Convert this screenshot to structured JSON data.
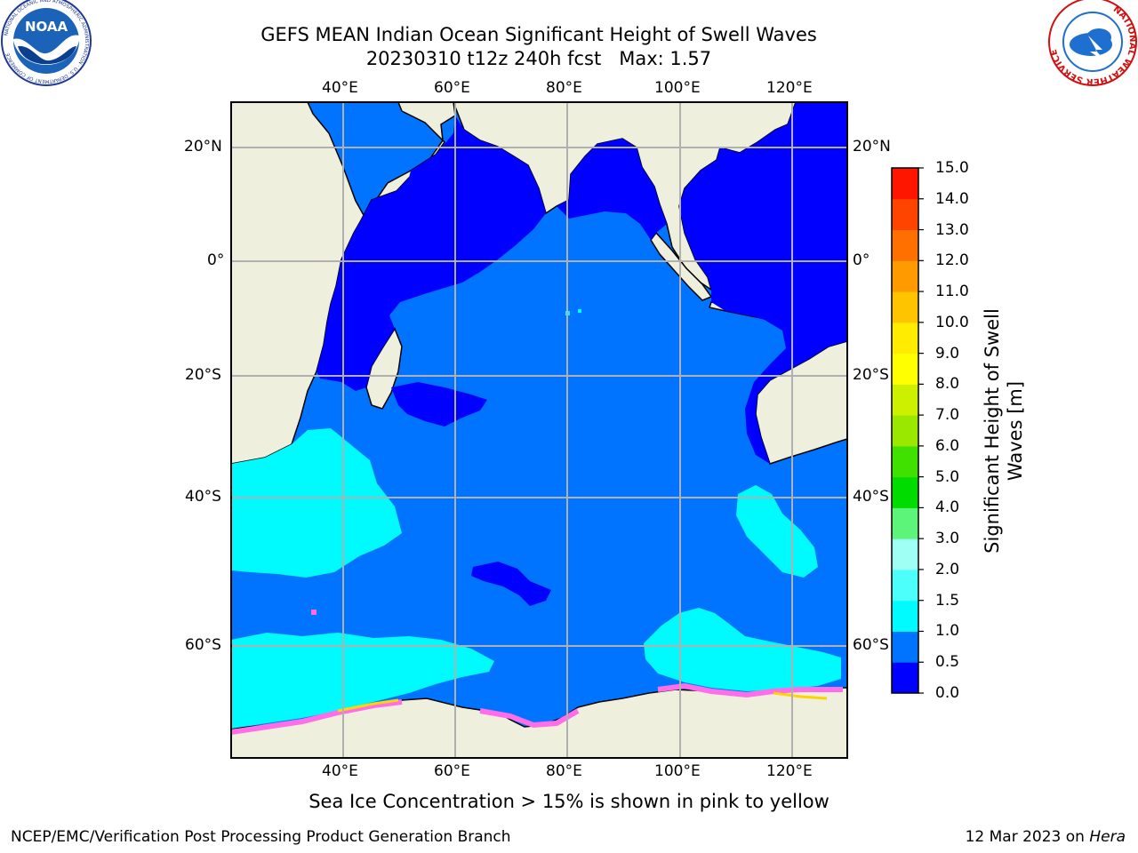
{
  "title_line1": "GEFS MEAN Indian Ocean Significant Height of Swell Waves",
  "title_line2": "20230310 t12z 240h fcst   Max: 1.57",
  "logos": {
    "noaa": {
      "text": "NOAA",
      "ring": "NATIONAL OCEANIC AND ATMOSPHERIC ADMINISTRATION · U.S. DEPARTMENT OF COMMERCE"
    },
    "nws": {
      "ring": "NATIONAL WEATHER SERVICE"
    }
  },
  "map": {
    "lon_labels": [
      "40°E",
      "60°E",
      "80°E",
      "100°E",
      "120°E"
    ],
    "lat_labels": [
      "20°N",
      "0°",
      "20°S",
      "40°S",
      "60°S"
    ],
    "colors": {
      "land": "#efefde",
      "swell_0_0_5": "#0000ff",
      "swell_0_5_1_0": "#0073ff",
      "swell_1_0_1_5": "#00fbff",
      "sea_ice": "#ff6ee8",
      "sea_ice_high": "#ffd400"
    }
  },
  "colorbar": {
    "ticks": [
      "0.0",
      "0.5",
      "1.0",
      "1.5",
      "2.0",
      "3.0",
      "4.0",
      "5.0",
      "6.0",
      "7.0",
      "8.0",
      "9.0",
      "10.0",
      "11.0",
      "12.0",
      "13.0",
      "14.0",
      "15.0"
    ],
    "colors": [
      "#0000ff",
      "#0073ff",
      "#00fbff",
      "#4dfffa",
      "#a0fff5",
      "#5cf57a",
      "#00dc00",
      "#40e000",
      "#9ae800",
      "#cdf000",
      "#ffff00",
      "#ffec00",
      "#ffc400",
      "#ff9a00",
      "#ff7000",
      "#ff4400",
      "#ff1600"
    ],
    "label": "Significant Height of Swell Waves [m]"
  },
  "note": "Sea Ice Concentration > 15% is shown in pink to yellow",
  "footer": {
    "left": "NCEP/EMC/Verification Post Processing Product Generation Branch",
    "date": "12 Mar 2023 on",
    "machine": "Hera"
  }
}
